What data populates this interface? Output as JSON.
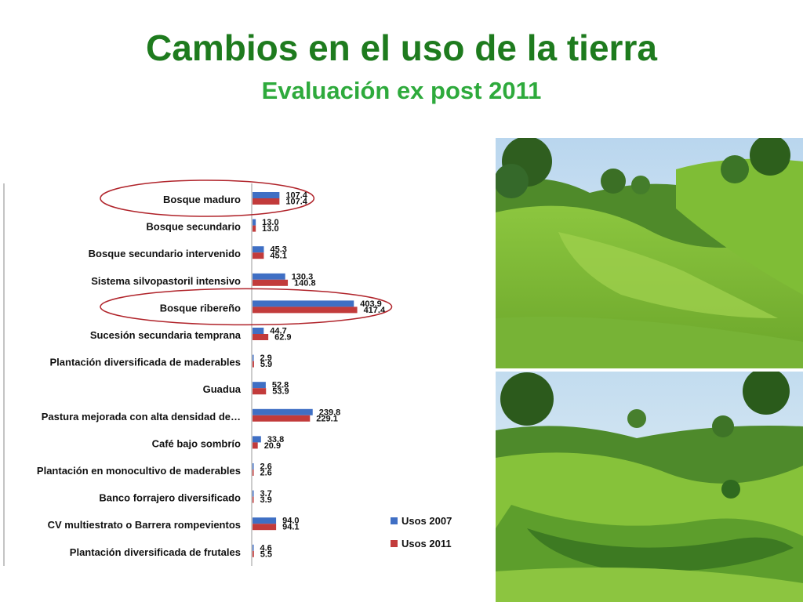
{
  "slide": {
    "title": "Cambios en el uso de la tierra",
    "subtitle": "Evaluación ex post 2011"
  },
  "colors": {
    "title": "#1e7b1e",
    "subtitle": "#2eaa3c",
    "usos_2007": "#3f6fc4",
    "usos_2011": "#c23b3b",
    "highlight_ellipse": "#b0232a"
  },
  "chart_data": {
    "type": "bar",
    "orientation": "horizontal",
    "categories": [
      "Bosque maduro",
      "Bosque secundario",
      "Bosque secundario intervenido",
      "Sistema silvopastoril intensivo",
      "Bosque ribereño",
      "Sucesión secundaria  temprana",
      "Plantación diversificada de maderables",
      "Guadua",
      "Pastura mejorada con alta densidad de…",
      "Café bajo sombrío",
      "Plantación en monocultivo de maderables",
      "Banco forrajero diversificado",
      "CV multiestrato o Barrera rompevientos",
      "Plantación diversificada de frutales"
    ],
    "series": [
      {
        "name": "Usos 2007",
        "values": [
          107.4,
          13.0,
          45.3,
          130.3,
          403.9,
          44.7,
          2.9,
          52.8,
          239.8,
          33.8,
          2.6,
          3.7,
          94.0,
          4.6
        ],
        "labels": [
          "107.4",
          "13.0",
          "45.3",
          "130.3",
          "403.9",
          "44.7",
          "2.9",
          "52.8",
          "239.8",
          "33.8",
          "2.6",
          "3.7",
          "94.0",
          "4.6"
        ]
      },
      {
        "name": "Usos 2011",
        "values": [
          107.4,
          13.0,
          45.1,
          140.8,
          417.4,
          62.9,
          5.9,
          53.9,
          229.1,
          20.9,
          2.6,
          3.9,
          94.1,
          5.5
        ],
        "labels": [
          "107.4",
          "13.0",
          "45.1",
          "140.8",
          "417.4",
          "62.9",
          "5.9",
          "53.9",
          "229.1",
          "20.9",
          "2.6",
          "3.9",
          "94.1",
          "5.5"
        ]
      }
    ],
    "highlighted_categories": [
      "Bosque maduro",
      "Bosque ribereño"
    ],
    "legend_position": "bottom-right",
    "grid": false
  },
  "photos": [
    {
      "name": "photo-riparian-forest-before",
      "icon": "landscape-photo-icon"
    },
    {
      "name": "photo-riparian-forest-after",
      "icon": "landscape-photo-icon"
    }
  ]
}
